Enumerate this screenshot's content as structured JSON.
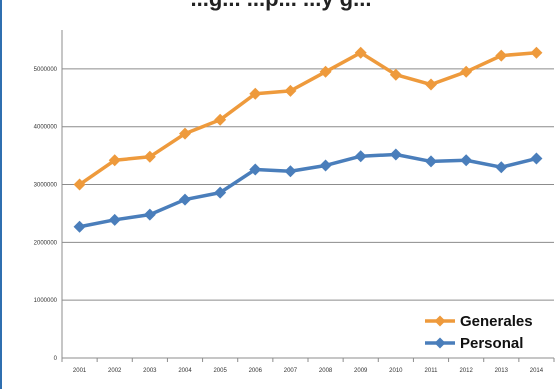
{
  "chart_data": {
    "type": "line",
    "title": "...g... ...p... ...y g...",
    "x": [
      "2001",
      "2002",
      "2003",
      "2004",
      "2005",
      "2006",
      "2007",
      "2008",
      "2009",
      "2010",
      "2011",
      "2012",
      "2013",
      "2014"
    ],
    "y_ticks": [
      "0",
      "1000000",
      "2000000",
      "3000000",
      "4000000",
      "5000000"
    ],
    "ylim": [
      0,
      5500000
    ],
    "grid": true,
    "legend_position": "bottom-right",
    "series": [
      {
        "name": "Generales",
        "color": "#ee9a3c",
        "values": [
          3000000,
          3420000,
          3480000,
          3880000,
          4120000,
          4570000,
          4620000,
          4950000,
          5280000,
          4900000,
          4730000,
          4950000,
          5230000,
          5280000
        ]
      },
      {
        "name": "Personal",
        "color": "#4a7ebb",
        "values": [
          2270000,
          2390000,
          2480000,
          2740000,
          2860000,
          3260000,
          3230000,
          3330000,
          3490000,
          3520000,
          3400000,
          3420000,
          3300000,
          3450000
        ]
      }
    ]
  }
}
